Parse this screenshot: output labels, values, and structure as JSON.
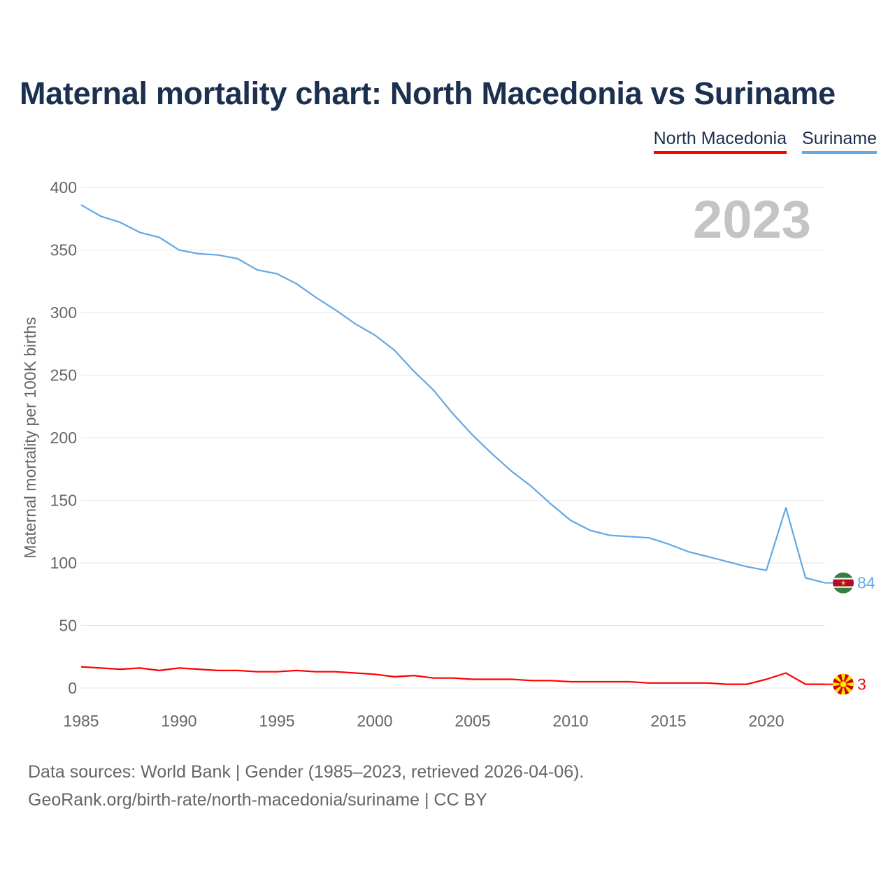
{
  "title": "Maternal mortality chart: North Macedonia vs Suriname",
  "legend": {
    "north_macedonia": "North Macedonia",
    "suriname": "Suriname"
  },
  "footer": {
    "sources": "Data sources: World Bank | Gender (1985–2023, retrieved 2026-04-06).",
    "link": "GeoRank.org/birth-rate/north-macedonia/suriname | CC BY"
  },
  "colors": {
    "north_macedonia": "#ff0000",
    "suriname": "#62a8e5",
    "title": "#1b2f4f",
    "grid": "#e5e5e5",
    "axis_text": "#666666",
    "year_label": "#c4c4c4"
  },
  "chart_data": {
    "type": "line",
    "title": "Maternal mortality chart: North Macedonia vs Suriname",
    "xlabel": "",
    "ylabel": "Maternal mortality per 100K births",
    "year_label": "2023",
    "xlim": [
      1985,
      2023
    ],
    "ylim": [
      0,
      400
    ],
    "x_ticks": [
      1985,
      1990,
      1995,
      2000,
      2005,
      2010,
      2015,
      2020
    ],
    "y_ticks": [
      0,
      50,
      100,
      150,
      200,
      250,
      300,
      350,
      400
    ],
    "x": [
      1985,
      1986,
      1987,
      1988,
      1989,
      1990,
      1991,
      1992,
      1993,
      1994,
      1995,
      1996,
      1997,
      1998,
      1999,
      2000,
      2001,
      2002,
      2003,
      2004,
      2005,
      2006,
      2007,
      2008,
      2009,
      2010,
      2011,
      2012,
      2013,
      2014,
      2015,
      2016,
      2017,
      2018,
      2019,
      2020,
      2021,
      2022,
      2023
    ],
    "series": [
      {
        "name": "Suriname",
        "key": "suriname",
        "end_label": "84",
        "values": [
          386,
          377,
          372,
          364,
          360,
          350,
          347,
          346,
          343,
          334,
          331,
          323,
          312,
          302,
          291,
          282,
          270,
          253,
          238,
          219,
          202,
          187,
          173,
          161,
          147,
          134,
          126,
          122,
          121,
          120,
          115,
          109,
          105,
          101,
          97,
          94,
          144,
          88,
          84
        ]
      },
      {
        "name": "North Macedonia",
        "key": "north_macedonia",
        "end_label": "3",
        "values": [
          17,
          16,
          15,
          16,
          14,
          16,
          15,
          14,
          14,
          13,
          13,
          14,
          13,
          13,
          12,
          11,
          9,
          10,
          8,
          8,
          7,
          7,
          7,
          6,
          6,
          5,
          5,
          5,
          5,
          4,
          4,
          4,
          4,
          3,
          3,
          7,
          12,
          3,
          3
        ]
      }
    ]
  }
}
